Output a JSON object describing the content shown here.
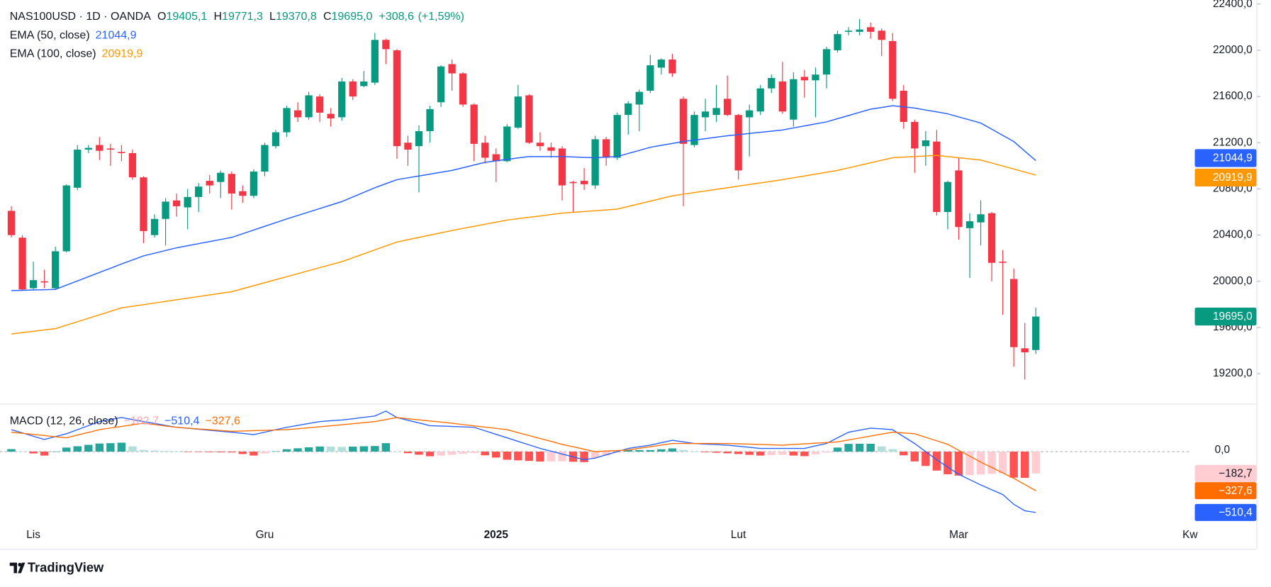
{
  "chart_data": [
    {
      "type": "candlestick",
      "title": "NAS100USD · 1D · OANDA",
      "ohlc_keys": {
        "open": "O",
        "high": "H",
        "low": "L",
        "close": "C"
      },
      "ohlc_labels": {
        "open": "19405,1",
        "high": "19771,3",
        "low": "19370,8",
        "close": "19695,0"
      },
      "change": {
        "value": 308.6,
        "label": "+308,6"
      },
      "change_pct": {
        "value": 1.59,
        "label": "(+1,59%)"
      },
      "up_color": "#089981",
      "down_color": "#f23645",
      "categories": [
        null,
        null,
        "Lis",
        null,
        null,
        null,
        null,
        null,
        null,
        null,
        null,
        null,
        null,
        null,
        null,
        null,
        null,
        null,
        null,
        null,
        null,
        null,
        null,
        "Gru",
        null,
        null,
        null,
        null,
        null,
        null,
        null,
        null,
        null,
        null,
        null,
        null,
        null,
        null,
        null,
        null,
        null,
        null,
        null,
        null,
        "2025",
        null,
        null,
        null,
        null,
        null,
        null,
        null,
        null,
        null,
        null,
        null,
        null,
        null,
        null,
        null,
        null,
        null,
        null,
        null,
        null,
        null,
        "Lut",
        null,
        null,
        null,
        null,
        null,
        null,
        null,
        null,
        null,
        null,
        null,
        null,
        null,
        null,
        null,
        null,
        null,
        null,
        null,
        "Mar",
        null,
        null,
        null,
        null,
        null,
        null,
        null,
        null,
        null,
        null,
        null,
        null,
        null,
        null,
        null,
        null,
        null,
        null,
        null,
        null,
        "Kw"
      ],
      "open": [
        20610,
        20378,
        19940,
        20000,
        19940,
        20260,
        20810,
        21140,
        21180,
        21150,
        21120,
        21110,
        20900,
        20400,
        20540,
        20700,
        20640,
        20730,
        20870,
        20860,
        20930,
        20780,
        20740,
        20950,
        21170,
        21290,
        21480,
        21420,
        21600,
        21450,
        21420,
        21730,
        21690,
        21720,
        22090,
        22000,
        21200,
        21170,
        21300,
        21550,
        21880,
        21800,
        21530,
        21200,
        21100,
        21040,
        21330,
        21610,
        21200,
        21160,
        21150,
        20860,
        20870,
        20830,
        21230,
        21070,
        21440,
        21530,
        21650,
        21850,
        21920,
        21580,
        21180,
        21420,
        21440,
        21580,
        21440,
        21420,
        21470,
        21670,
        21730,
        21400,
        21770,
        21740,
        21790,
        22000,
        22160,
        22160,
        22200,
        22170,
        22080,
        21650,
        21380,
        21170,
        21210,
        20600,
        20960,
        20460,
        20510,
        20590,
        20170,
        20020,
        19420,
        19405.1,
        null,
        null,
        null,
        null,
        null,
        null,
        null,
        null,
        null,
        null,
        null,
        null,
        null,
        null
      ],
      "high": [
        20650,
        20400,
        20170,
        20100,
        20300,
        20840,
        21180,
        21180,
        21250,
        21190,
        21180,
        21140,
        20910,
        20580,
        20720,
        20760,
        20800,
        20850,
        20920,
        20960,
        20950,
        20830,
        20970,
        21200,
        21310,
        21520,
        21550,
        21640,
        21620,
        21500,
        21760,
        21750,
        21820,
        22150,
        22100,
        22010,
        21260,
        21350,
        21520,
        21870,
        21920,
        21810,
        21540,
        21260,
        21150,
        21360,
        21700,
        21620,
        21290,
        21200,
        21170,
        20870,
        20980,
        21260,
        21250,
        21460,
        21560,
        21660,
        21960,
        21930,
        21970,
        21600,
        21470,
        21580,
        21700,
        21780,
        21450,
        21530,
        21700,
        21790,
        21900,
        21810,
        21830,
        21850,
        22030,
        22170,
        22200,
        22270,
        22240,
        22190,
        22150,
        21700,
        21400,
        21300,
        21310,
        20870,
        21070,
        20590,
        20700,
        20600,
        20270,
        20110,
        19640,
        19771.3,
        null,
        null,
        null,
        null,
        null,
        null,
        null,
        null,
        null,
        null,
        null,
        null,
        null,
        null
      ],
      "low": [
        20380,
        19920,
        19930,
        19940,
        19930,
        20250,
        20790,
        21110,
        21050,
        21000,
        21040,
        20880,
        20330,
        20380,
        20310,
        20560,
        20450,
        20600,
        20760,
        20720,
        20620,
        20680,
        20720,
        20910,
        21150,
        21250,
        21380,
        21400,
        21380,
        21340,
        21390,
        21570,
        21680,
        21700,
        21880,
        21060,
        21000,
        20770,
        21200,
        21510,
        21650,
        21510,
        21040,
        21020,
        20860,
        21030,
        21320,
        21190,
        21130,
        21070,
        20700,
        20600,
        20790,
        20800,
        21000,
        21050,
        21270,
        21300,
        21630,
        21790,
        21770,
        20650,
        21160,
        21300,
        21380,
        21430,
        20880,
        21080,
        21440,
        21630,
        21450,
        21340,
        21590,
        21420,
        21670,
        21980,
        22130,
        22130,
        22100,
        21950,
        21560,
        21320,
        20940,
        21000,
        20570,
        20450,
        20360,
        20030,
        20310,
        20000,
        19710,
        19260,
        19150,
        19370.8,
        null,
        null,
        null,
        null,
        null,
        null,
        null,
        null,
        null,
        null,
        null,
        null,
        null,
        null
      ],
      "close": [
        20400,
        19930,
        20010,
        19990,
        20260,
        20830,
        21140,
        21155,
        21130,
        21140,
        21110,
        20900,
        20435,
        20540,
        20690,
        20650,
        20730,
        20820,
        20830,
        20940,
        20760,
        20740,
        20950,
        21180,
        21290,
        21500,
        21420,
        21610,
        21460,
        21410,
        21730,
        21600,
        21730,
        22090,
        22010,
        21170,
        21140,
        21300,
        21490,
        21860,
        21800,
        21530,
        21190,
        21070,
        21040,
        21340,
        21600,
        21200,
        21170,
        21130,
        20830,
        20850,
        20840,
        21230,
        21070,
        21440,
        21540,
        21640,
        21870,
        21920,
        21800,
        21190,
        21440,
        21470,
        21500,
        21440,
        20960,
        21480,
        21670,
        21760,
        21470,
        21750,
        21740,
        21790,
        22010,
        22140,
        22170,
        22180,
        22160,
        22090,
        21580,
        21380,
        21150,
        21220,
        20600,
        20860,
        20470,
        20520,
        20580,
        20160,
        20160,
        19430,
        19385,
        19695,
        null,
        null,
        null,
        null,
        null,
        null,
        null,
        null,
        null,
        null,
        null,
        null,
        null,
        null
      ],
      "series": [
        {
          "name": "EMA (50, close)",
          "color": "#2962ff",
          "last_label": "21044,9",
          "values": [
            19920,
            19922,
            19925,
            19927,
            19930,
            19967,
            20003,
            20040,
            20077,
            20113,
            20150,
            20185,
            20220,
            20243,
            20267,
            20290,
            20308,
            20326,
            20344,
            20362,
            20380,
            20412,
            20444,
            20476,
            20508,
            20540,
            20570,
            20600,
            20630,
            20660,
            20690,
            20730,
            20770,
            20810,
            20845,
            20880,
            20896,
            20912,
            20928,
            20944,
            20960,
            20983,
            21007,
            21030,
            21043,
            21055,
            21068,
            21080,
            21080,
            21080,
            21080,
            21077,
            21073,
            21070,
            21075,
            21080,
            21107,
            21133,
            21160,
            21177,
            21193,
            21210,
            21223,
            21235,
            21248,
            21260,
            21270,
            21280,
            21290,
            21300,
            21310,
            21328,
            21345,
            21363,
            21380,
            21408,
            21435,
            21463,
            21490,
            21505,
            21520,
            21510,
            21500,
            21483,
            21467,
            21450,
            21423,
            21397,
            21370,
            21317,
            21263,
            21210,
            21127,
            21044.9,
            null,
            null,
            null,
            null,
            null,
            null,
            null,
            null,
            null,
            null,
            null,
            null,
            null,
            null
          ]
        },
        {
          "name": "EMA (100, close)",
          "color": "#ff9800",
          "last_label": "20919,9",
          "values": [
            19544,
            19556,
            19567,
            19579,
            19590,
            19620,
            19650,
            19680,
            19710,
            19740,
            19770,
            19784,
            19798,
            19812,
            19826,
            19840,
            19854,
            19868,
            19882,
            19896,
            19910,
            19936,
            19962,
            19988,
            20014,
            20040,
            20066,
            20092,
            20118,
            20144,
            20170,
            20204,
            20238,
            20272,
            20306,
            20340,
            20360,
            20380,
            20400,
            20420,
            20440,
            20458,
            20476,
            20494,
            20512,
            20530,
            20542,
            20554,
            20566,
            20578,
            20590,
            20597,
            20604,
            20611,
            20618,
            20625,
            20648,
            20671,
            20694,
            20717,
            20740,
            20754,
            20768,
            20782,
            20796,
            20810,
            20824,
            20838,
            20852,
            20866,
            20880,
            20896,
            20912,
            20928,
            20944,
            20960,
            20982,
            21004,
            21026,
            21048,
            21070,
            21075,
            21080,
            21085,
            21090,
            21080,
            21070,
            21060,
            21050,
            21024,
            20998,
            20972,
            20946,
            20919.9,
            null,
            null,
            null,
            null,
            null,
            null,
            null,
            null,
            null,
            null,
            null,
            null,
            null,
            null
          ]
        }
      ],
      "ylim": [
        18940,
        22435
      ],
      "yticks": [
        {
          "value": 22400,
          "label": "22400,0"
        },
        {
          "value": 22000,
          "label": "22000,0"
        },
        {
          "value": 21600,
          "label": "21600,0"
        },
        {
          "value": 21200,
          "label": "21200,0"
        },
        {
          "value": 20800,
          "label": "20800,0"
        },
        {
          "value": 20400,
          "label": "20400,0"
        },
        {
          "value": 20000,
          "label": "20000,0"
        },
        {
          "value": 19600,
          "label": "19600,0"
        },
        {
          "value": 19200,
          "label": "19200,0"
        }
      ],
      "grid": false
    },
    {
      "type": "macd",
      "title": "MACD (12, 26, close)",
      "histogram": {
        "last_label": "−182,7",
        "colors": {
          "up_rising": "#26a69a",
          "up_falling": "#b2dfdb",
          "down_falling": "#ff5252",
          "down_rising": "#ffcdd2"
        },
        "values": [
          21,
          3,
          -15,
          -33,
          1,
          34,
          45,
          57,
          68,
          71,
          75,
          44,
          14,
          9,
          5,
          0,
          -1,
          -2,
          -5,
          -6,
          -7,
          -20,
          -33,
          -15,
          3,
          20,
          28,
          36,
          43,
          42,
          40,
          42,
          45,
          47,
          71,
          0,
          -13,
          -26,
          -39,
          -33,
          -27,
          -19,
          -12,
          -31,
          -50,
          -68,
          -73,
          -78,
          -83,
          -82,
          -81,
          -85,
          -88,
          -54,
          -32,
          -9,
          13,
          13,
          13,
          20,
          27,
          14,
          0,
          -5,
          -9,
          -14,
          -20,
          -27,
          -33,
          -30,
          -27,
          -33,
          -38,
          -23,
          -8,
          34,
          65,
          66,
          66,
          44,
          21,
          -31,
          -82,
          -120,
          -159,
          -190,
          -201,
          -197,
          -191,
          -187,
          -181,
          -218,
          -220,
          -182.7,
          null,
          null,
          null,
          null,
          null,
          null,
          null,
          null,
          null,
          null,
          null,
          null,
          null,
          null
        ]
      },
      "macd": {
        "color": "#2962ff",
        "last_label": "−510,4",
        "values": [
          184,
          157,
          129,
          102,
          126,
          150,
          184,
          218,
          252,
          269,
          286,
          269,
          252,
          236,
          220,
          204,
          196,
          188,
          179,
          171,
          163,
          153,
          143,
          163,
          184,
          204,
          220,
          236,
          252,
          259,
          265,
          276,
          288,
          299,
          340,
          286,
          263,
          241,
          218,
          215,
          211,
          208,
          204,
          175,
          145,
          116,
          86,
          57,
          27,
          4,
          -20,
          -44,
          -68,
          -54,
          -27,
          0,
          27,
          41,
          54,
          75,
          95,
          82,
          68,
          63,
          59,
          54,
          45,
          36,
          27,
          27,
          27,
          27,
          27,
          48,
          68,
          116,
          163,
          180,
          197,
          191,
          184,
          126,
          68,
          0,
          -68,
          -129,
          -190,
          -235,
          -279,
          -320,
          -360,
          -442,
          -496,
          -510.4,
          null,
          null,
          null,
          null,
          null,
          null,
          null,
          null,
          null,
          null,
          null,
          null,
          null,
          null
        ]
      },
      "signal": {
        "color": "#ff6d00",
        "last_label": "−327,6",
        "values": [
          163,
          154,
          144,
          135,
          125,
          116,
          139,
          161,
          184,
          198,
          211,
          225,
          238,
          227,
          215,
          204,
          197,
          190,
          184,
          177,
          170,
          173,
          176,
          178,
          181,
          184,
          192,
          200,
          209,
          217,
          225,
          234,
          243,
          252,
          269,
          286,
          276,
          267,
          257,
          248,
          238,
          227,
          216,
          206,
          195,
          184,
          159,
          135,
          110,
          86,
          61,
          41,
          20,
          0,
          5,
          9,
          14,
          28,
          41,
          55,
          68,
          68,
          68,
          68,
          68,
          68,
          65,
          63,
          60,
          57,
          54,
          60,
          65,
          71,
          76,
          82,
          98,
          114,
          131,
          147,
          163,
          157,
          150,
          120,
          91,
          61,
          11,
          -38,
          -88,
          -133,
          -179,
          -224,
          -276,
          -327.6,
          null,
          null,
          null,
          null,
          null,
          null,
          null,
          null,
          null,
          null,
          null,
          null,
          null,
          null
        ]
      },
      "ylim": [
        -598,
        388
      ],
      "yticks": [
        {
          "value": 0,
          "label": "0,0"
        }
      ]
    }
  ],
  "brand": "TradingView"
}
